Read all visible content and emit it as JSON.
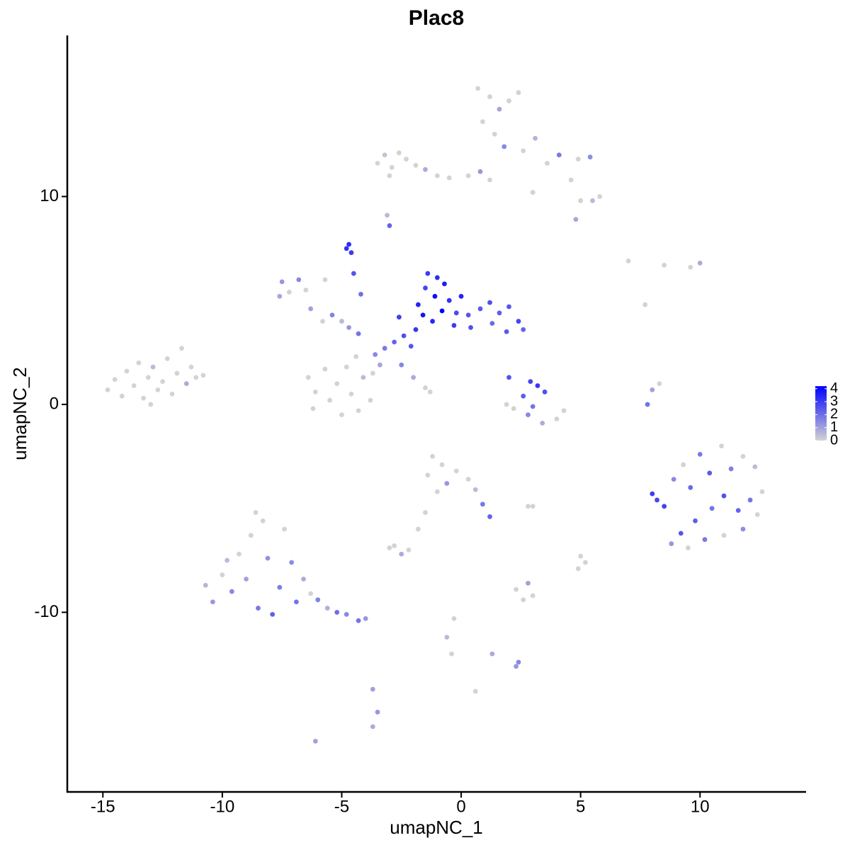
{
  "chart_data": {
    "type": "scatter",
    "title": "Plac8",
    "x_label": "umapNC_1",
    "y_label": "umapNC_2",
    "xlim": [
      -16.49,
      14.44
    ],
    "ylim": [
      -18.64,
      17.75
    ],
    "xticks": [
      -15,
      -10,
      -5,
      0,
      5,
      10
    ],
    "yticks": [
      -10,
      0,
      10
    ],
    "low_color": "#d3d3d3",
    "high_color": "#0000ff",
    "colorbar_lim": [
      0,
      4.2
    ],
    "colorbar_ticks": [
      0,
      1,
      2,
      3,
      4
    ],
    "x": [
      -14.8,
      -14.5,
      -14.2,
      -14.0,
      -13.7,
      -13.5,
      -13.3,
      -13.1,
      -12.9,
      -12.7,
      -12.5,
      -12.3,
      -12.1,
      -11.9,
      -11.7,
      -11.5,
      -11.3,
      -11.1,
      -10.8,
      -13.0,
      -3.5,
      -3.2,
      -2.9,
      -2.6,
      -3.0,
      -2.3,
      -1.9,
      -1.5,
      -1.0,
      -0.5,
      0.3,
      0.8,
      1.2,
      0.7,
      1.2,
      1.6,
      0.9,
      1.4,
      2.0,
      2.4,
      1.8,
      2.6,
      3.1,
      3.6,
      4.1,
      4.6,
      5.0,
      5.5,
      5.8,
      4.9,
      5.4,
      4.8,
      3.0,
      -3.0,
      -3.1,
      -4.8,
      -4.6,
      -4.7,
      -4.5,
      -4.2,
      -1.4,
      -1.0,
      -0.7,
      -1.5,
      -1.1,
      -0.5,
      -1.8,
      -0.8,
      -0.2,
      0.3,
      0.8,
      1.2,
      1.6,
      2.0,
      2.4,
      2.6,
      1.9,
      1.3,
      0.4,
      -0.3,
      -1.2,
      -1.9,
      -2.4,
      -2.8,
      -2.1,
      -3.2,
      -3.6,
      -2.6,
      -1.6,
      0.0,
      -2.5,
      -2.0,
      -1.5,
      -1.3,
      -7.5,
      -7.2,
      -7.6,
      -6.8,
      -6.5,
      -6.3,
      -5.8,
      -5.4,
      -5.0,
      -4.7,
      -4.3,
      -5.7,
      -6.4,
      -6.1,
      -6.2,
      -5.7,
      -5.5,
      -5.2,
      -5.0,
      -4.8,
      -4.6,
      -4.3,
      -4.1,
      -3.8,
      -3.7,
      -4.4,
      -3.4,
      2.0,
      2.9,
      3.2,
      3.5,
      2.6,
      2.2,
      2.8,
      3.4,
      4.0,
      4.3,
      3.0,
      1.9,
      7.8,
      8.0,
      8.3,
      8.0,
      8.2,
      8.5,
      8.9,
      9.3,
      9.6,
      10.0,
      10.4,
      10.9,
      11.3,
      11.8,
      12.3,
      12.6,
      12.1,
      11.6,
      11.0,
      10.5,
      9.8,
      9.2,
      8.8,
      9.5,
      10.2,
      11.0,
      11.8,
      12.4,
      -1.2,
      -0.8,
      -1.4,
      -0.6,
      -0.2,
      0.3,
      0.6,
      -1.0,
      0.9,
      1.2,
      -1.5,
      -1.8,
      -2.8,
      -2.5,
      -2.2,
      5.0,
      5.2,
      2.3,
      2.8,
      2.6,
      3.0,
      -0.3,
      -0.6,
      -0.4,
      1.3,
      2.4,
      2.3,
      0.6,
      -3.7,
      -3.5,
      -3.7,
      -6.1,
      7.0,
      7.7,
      9.6,
      10.0,
      8.5,
      -3.0,
      4.9,
      2.8,
      3.0,
      -10.7,
      -10.4,
      -10.0,
      -9.6,
      -9.3,
      -9.0,
      -8.8,
      -8.5,
      -8.3,
      -8.1,
      -7.9,
      -7.6,
      -7.4,
      -7.1,
      -6.9,
      -6.6,
      -6.3,
      -6.0,
      -5.6,
      -5.2,
      -4.8,
      -4.3,
      -4.0,
      -8.6,
      -9.8
    ],
    "y": [
      0.7,
      1.2,
      0.4,
      1.6,
      0.9,
      2.0,
      0.3,
      1.3,
      1.8,
      0.7,
      1.1,
      2.2,
      0.5,
      1.5,
      2.7,
      1.0,
      1.8,
      1.3,
      1.4,
      0.0,
      11.6,
      12.0,
      11.4,
      12.1,
      11.0,
      11.8,
      11.5,
      11.3,
      11.0,
      10.9,
      11.0,
      11.2,
      10.8,
      15.2,
      14.8,
      14.2,
      13.6,
      13.0,
      14.6,
      15.0,
      12.4,
      12.2,
      12.8,
      11.6,
      12.0,
      10.8,
      9.8,
      9.8,
      10.0,
      11.8,
      11.9,
      8.9,
      10.2,
      8.6,
      9.1,
      7.5,
      7.3,
      7.7,
      6.3,
      5.3,
      6.3,
      6.1,
      5.8,
      5.6,
      5.2,
      5.0,
      4.8,
      4.5,
      4.4,
      4.3,
      4.6,
      4.9,
      4.4,
      4.7,
      4.0,
      3.6,
      3.5,
      3.9,
      3.7,
      3.8,
      4.0,
      3.6,
      3.3,
      3.0,
      2.8,
      2.7,
      2.4,
      4.2,
      4.3,
      5.2,
      1.9,
      1.3,
      0.8,
      0.6,
      5.9,
      5.4,
      5.2,
      6.0,
      5.5,
      4.6,
      4.0,
      4.3,
      4.0,
      3.7,
      3.4,
      6.0,
      1.3,
      0.6,
      -0.2,
      1.7,
      0.2,
      1.0,
      -0.5,
      1.8,
      0.5,
      -0.3,
      1.3,
      0.2,
      1.5,
      2.3,
      1.9,
      1.3,
      1.1,
      0.9,
      0.6,
      0.4,
      -0.2,
      -0.5,
      -0.9,
      -0.7,
      -0.3,
      -0.1,
      0.0,
      0.0,
      0.7,
      1.0,
      -4.3,
      -4.6,
      -4.9,
      -3.6,
      -2.9,
      -4.0,
      -2.4,
      -3.3,
      -2.0,
      -3.1,
      -2.5,
      -3.0,
      -4.2,
      -4.6,
      -5.1,
      -4.4,
      -5.0,
      -5.6,
      -6.2,
      -6.7,
      -6.9,
      -6.5,
      -6.3,
      -6.0,
      -5.3,
      -2.5,
      -2.9,
      -3.4,
      -3.8,
      -3.2,
      -3.6,
      -4.1,
      -4.2,
      -4.8,
      -5.4,
      -5.2,
      -6.0,
      -6.8,
      -7.2,
      -7.0,
      -7.3,
      -7.6,
      -8.9,
      -8.6,
      -9.4,
      -9.2,
      -10.3,
      -11.2,
      -12.0,
      -12.0,
      -12.4,
      -12.6,
      -13.8,
      -13.7,
      -14.8,
      -15.5,
      -16.2,
      6.9,
      4.8,
      6.6,
      6.8,
      6.7,
      -6.9,
      -7.9,
      -4.9,
      -4.9,
      -8.7,
      -9.5,
      -8.2,
      -9.0,
      -7.2,
      -8.4,
      -6.3,
      -9.8,
      -5.6,
      -7.4,
      -10.1,
      -8.8,
      -6.0,
      -7.6,
      -9.5,
      -8.4,
      -9.1,
      -9.4,
      -9.8,
      -10.0,
      -10.1,
      -10.4,
      -10.3,
      -5.2,
      -7.5
    ],
    "expression": [
      0,
      0,
      0,
      0,
      0,
      0,
      0,
      0,
      0.5,
      0,
      0,
      0,
      0,
      0,
      0,
      0.8,
      0,
      0,
      0,
      0,
      0,
      0.3,
      0,
      0,
      0,
      0,
      0,
      0.8,
      0,
      0,
      0,
      1.2,
      0,
      0,
      0,
      0.9,
      0,
      0,
      0,
      0,
      1.5,
      0,
      0.6,
      0,
      1.8,
      0,
      0,
      0.5,
      0,
      0,
      1.4,
      0.9,
      0,
      2.2,
      0.5,
      3.2,
      3.0,
      3.3,
      2.5,
      2.0,
      3.0,
      3.3,
      3.6,
      2.8,
      3.9,
      3.2,
      3.5,
      4.2,
      2.7,
      2.5,
      2.4,
      2.6,
      2.3,
      2.5,
      2.8,
      2.2,
      2.4,
      2.1,
      2.6,
      3.0,
      3.4,
      3.1,
      2.6,
      2.2,
      2.5,
      1.8,
      1.5,
      2.9,
      3.8,
      3.5,
      1.5,
      0.8,
      0,
      0,
      1.2,
      0,
      0.9,
      1.5,
      0,
      1.0,
      0,
      1.6,
      0.5,
      1.2,
      1.9,
      0,
      0,
      0,
      0,
      0,
      0,
      0,
      0,
      0,
      0,
      0,
      0.5,
      0,
      0,
      0,
      0.9,
      2.5,
      2.8,
      3.1,
      2.6,
      2.3,
      0,
      1.5,
      0.8,
      0,
      0,
      1.9,
      0,
      1.9,
      1.0,
      0,
      3.0,
      2.8,
      2.9,
      1.5,
      0,
      2.1,
      1.8,
      2.4,
      0,
      1.7,
      0,
      0.5,
      0,
      1.9,
      2.2,
      2.6,
      1.9,
      2.3,
      2.5,
      1.2,
      0,
      1.8,
      0,
      1.4,
      0,
      0,
      0,
      0,
      1.2,
      0,
      0,
      0.5,
      0,
      1.8,
      2.2,
      0,
      0,
      0,
      0.8,
      0,
      0,
      0,
      0,
      1.0,
      0,
      0,
      0,
      0.5,
      0,
      0.8,
      1.5,
      1.2,
      0,
      1.0,
      1.2,
      0.8,
      1.0,
      0,
      0,
      0,
      0.8,
      0,
      0,
      0,
      0,
      0,
      0.6,
      1.2,
      0,
      1.5,
      0,
      1.0,
      0,
      1.8,
      0,
      1.3,
      2.3,
      1.7,
      0,
      1.4,
      1.9,
      0.8,
      0,
      1.6,
      0.7,
      2.0,
      1.5,
      1.9,
      1.2,
      0,
      0.5
    ]
  }
}
